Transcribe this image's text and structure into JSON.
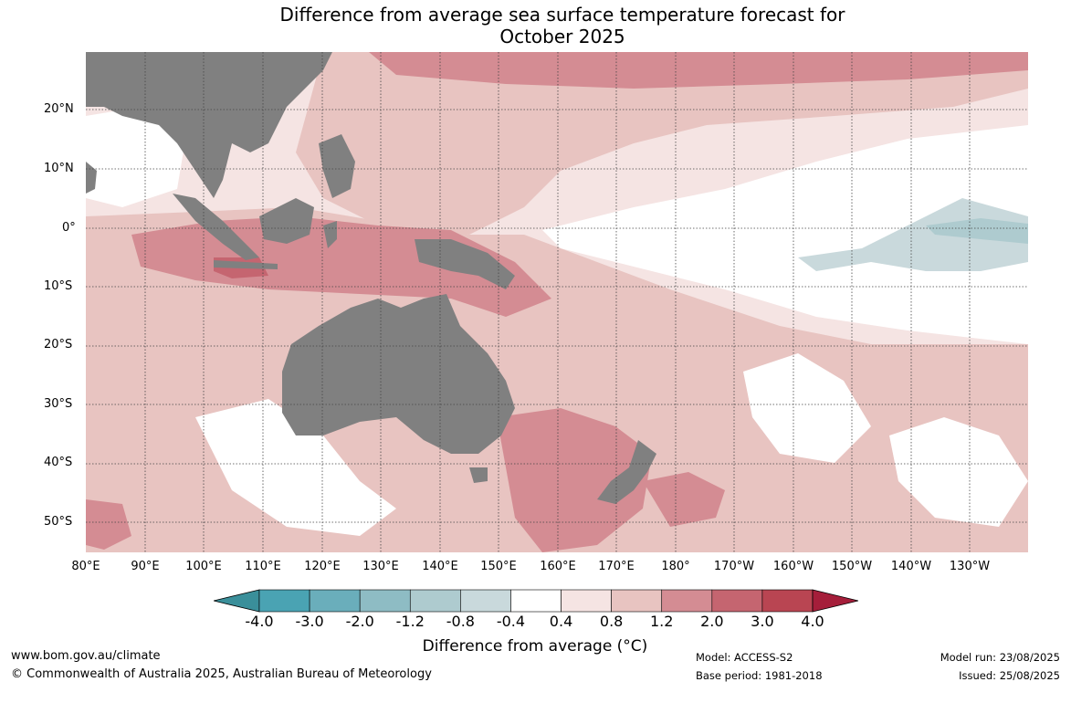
{
  "title_line1": "Difference from average sea surface temperature forecast for",
  "title_line2": "October 2025",
  "lat_labels": [
    "20°N",
    "10°N",
    "0°",
    "10°S",
    "20°S",
    "30°S",
    "40°S",
    "50°S"
  ],
  "lon_labels": [
    "80°E",
    "90°E",
    "100°E",
    "110°E",
    "120°E",
    "130°E",
    "140°E",
    "150°E",
    "160°E",
    "170°E",
    "180°",
    "170°W",
    "160°W",
    "150°W",
    "140°W",
    "130°W"
  ],
  "colorbar": {
    "ticks": [
      "-4.0",
      "-3.0",
      "-2.0",
      "-1.2",
      "-0.8",
      "-0.4",
      "0.4",
      "0.8",
      "1.2",
      "2.0",
      "3.0",
      "4.0"
    ],
    "colors": [
      "#3a8f9a",
      "#4aa3b3",
      "#6aaebb",
      "#8ebcc4",
      "#aecbcf",
      "#c9d9dc",
      "#ffffff",
      "#f5e4e3",
      "#e8c4c1",
      "#d48c93",
      "#c56570",
      "#b94552",
      "#a51e3a"
    ],
    "title": "Difference from average (°C)"
  },
  "footer": {
    "url": "www.bom.gov.au/climate",
    "copyright": "© Commonwealth of Australia 2025, Australian Bureau of Meteorology",
    "model": "Model: ACCESS-S2",
    "base_period": "Base period: 1981-2018",
    "model_run": "Model run: 23/08/2025",
    "issued": "Issued: 25/08/2025"
  }
}
